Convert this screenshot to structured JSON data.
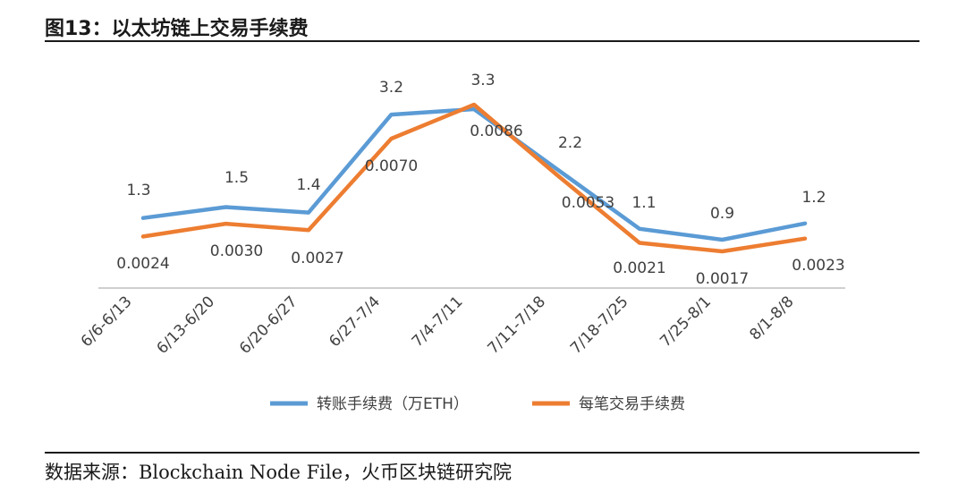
{
  "figure": {
    "title": "图13：以太坊链上交易手续费",
    "source": "数据来源：Blockchain Node File，火币区块链研究院"
  },
  "colors": {
    "series1": "#5B9BD5",
    "series2": "#ED7D31",
    "axis": "#bfbfbf",
    "text": "#404040"
  },
  "chart_data": {
    "type": "line",
    "categories": [
      "6/6-6/13",
      "6/13-6/20",
      "6/20-6/27",
      "6/27-7/4",
      "7/4-7/11",
      "7/11-7/18",
      "7/18-7/25",
      "7/25-8/1",
      "8/1-8/8"
    ],
    "series": [
      {
        "name": "转账手续费（万ETH）",
        "values": [
          1.3,
          1.5,
          1.4,
          3.2,
          3.3,
          2.2,
          1.1,
          0.9,
          1.2
        ],
        "labels": [
          "1.3",
          "1.5",
          "1.4",
          "3.2",
          "3.3",
          "2.2",
          "1.1",
          "0.9",
          "1.2"
        ]
      },
      {
        "name": "每笔交易手续费",
        "values": [
          0.0024,
          0.003,
          0.0027,
          0.007,
          0.0086,
          0.0053,
          0.0021,
          0.0017,
          0.0023
        ],
        "labels": [
          "0.0024",
          "0.0030",
          "0.0027",
          "0.0070",
          "0.0086",
          "0.0053",
          "0.0021",
          "0.0017",
          "0.0023"
        ]
      }
    ],
    "legend_position": "bottom",
    "grid": false
  }
}
